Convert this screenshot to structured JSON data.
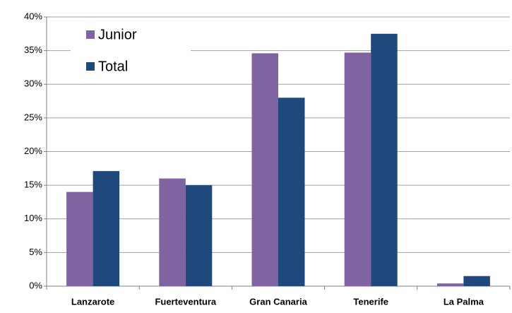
{
  "chart_data": {
    "type": "bar",
    "categories": [
      "Lanzarote",
      "Fuerteventura",
      "Gran Canaria",
      "Tenerife",
      "La Palma"
    ],
    "series": [
      {
        "name": "Junior",
        "color": "#8064a2",
        "values": [
          14,
          16,
          34.6,
          34.7,
          0.4
        ]
      },
      {
        "name": "Total",
        "color": "#1f497d",
        "values": [
          17.1,
          15,
          28,
          37.5,
          1.5
        ]
      }
    ],
    "ylim": [
      0,
      40
    ],
    "yticks": [
      {
        "value": 0,
        "label": "0%"
      },
      {
        "value": 5,
        "label": "5%"
      },
      {
        "value": 10,
        "label": "10%"
      },
      {
        "value": 15,
        "label": "15%"
      },
      {
        "value": 20,
        "label": "20%"
      },
      {
        "value": 25,
        "label": "25%"
      },
      {
        "value": 30,
        "label": "30%"
      },
      {
        "value": 35,
        "label": "35%"
      },
      {
        "value": 40,
        "label": "40%"
      }
    ],
    "grid": true,
    "legend": "top-left"
  }
}
